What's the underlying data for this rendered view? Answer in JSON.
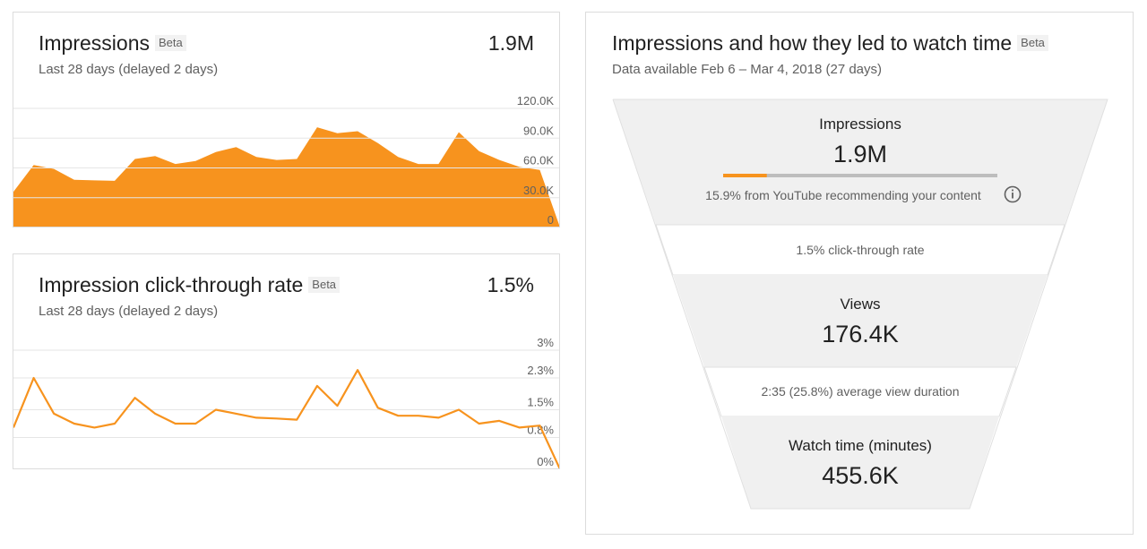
{
  "impressions_card": {
    "title": "Impressions",
    "beta": "Beta",
    "subtitle": "Last 28 days (delayed 2 days)",
    "total": "1.9M",
    "ticks": [
      "120.0K",
      "90.0K",
      "60.0K",
      "30.0K",
      "0"
    ]
  },
  "ctr_card": {
    "title": "Impression click-through rate",
    "beta": "Beta",
    "subtitle": "Last 28 days (delayed 2 days)",
    "total": "1.5%",
    "ticks": [
      "3%",
      "2.3%",
      "1.5%",
      "0.8%",
      "0%"
    ]
  },
  "funnel_card": {
    "title": "Impressions and how they led to watch time",
    "beta": "Beta",
    "subtitle": "Data available Feb 6 – Mar 4, 2018 (27 days)",
    "impressions_label": "Impressions",
    "impressions_value": "1.9M",
    "recommend_text": "15.9% from YouTube recommending your content",
    "recommend_fraction": 0.159,
    "ctr_text": "1.5% click-through rate",
    "views_label": "Views",
    "views_value": "176.4K",
    "avd_text": "2:35 (25.8%) average view duration",
    "watch_label": "Watch time (minutes)",
    "watch_value": "455.6K",
    "info_icon": "info-icon",
    "colors": {
      "accent": "#f7931e",
      "band": "#f0f0f0",
      "bar_bg": "#bdbdbd"
    }
  },
  "chart_data": [
    {
      "type": "area",
      "title": "Impressions",
      "ylim": [
        0,
        120000
      ],
      "yticks": [
        0,
        30000,
        60000,
        90000,
        120000
      ],
      "grid": true,
      "values": [
        36000,
        63000,
        59000,
        48000,
        47500,
        47000,
        69000,
        72000,
        64000,
        67000,
        76000,
        81000,
        71000,
        68000,
        69000,
        101000,
        95000,
        97000,
        85000,
        71000,
        64000,
        64000,
        96000,
        77000,
        68000,
        61000,
        58000,
        0
      ]
    },
    {
      "type": "line",
      "title": "Impression click-through rate",
      "ylim": [
        0,
        3
      ],
      "yticks": [
        0,
        0.8,
        1.5,
        2.3,
        3
      ],
      "grid": true,
      "values": [
        1.05,
        2.3,
        1.4,
        1.15,
        1.05,
        1.15,
        1.8,
        1.4,
        1.15,
        1.15,
        1.5,
        1.4,
        1.3,
        1.28,
        1.25,
        2.1,
        1.6,
        2.5,
        1.55,
        1.35,
        1.35,
        1.3,
        1.5,
        1.15,
        1.22,
        1.05,
        1.1,
        0
      ]
    }
  ]
}
